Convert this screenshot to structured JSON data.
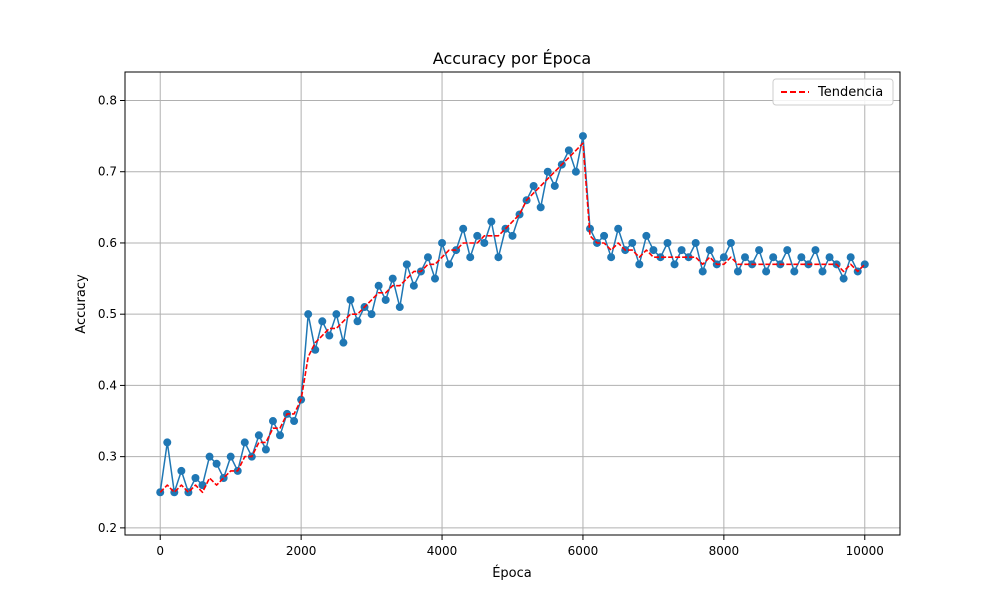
{
  "chart_data": {
    "type": "line",
    "title": "Accuracy por Época",
    "xlabel": "Época",
    "ylabel": "Accuracy",
    "xlim": [
      -500,
      10500
    ],
    "ylim": [
      0.19,
      0.84
    ],
    "x_ticks": [
      0,
      2000,
      4000,
      6000,
      8000,
      10000
    ],
    "y_ticks": [
      0.2,
      0.3,
      0.4,
      0.5,
      0.6,
      0.7,
      0.8
    ],
    "y_tick_decimals": 1,
    "grid": true,
    "legend_position": "top-right",
    "colors": {
      "accuracy": "#1f77b4",
      "trend": "#ff0000",
      "grid": "#b0b0b0"
    },
    "series": [
      {
        "key": "accuracy",
        "style": "line-marker",
        "x": [
          0,
          100,
          200,
          300,
          400,
          500,
          600,
          700,
          800,
          900,
          1000,
          1100,
          1200,
          1300,
          1400,
          1500,
          1600,
          1700,
          1800,
          1900,
          2000,
          2100,
          2200,
          2300,
          2400,
          2500,
          2600,
          2700,
          2800,
          2900,
          3000,
          3100,
          3200,
          3300,
          3400,
          3500,
          3600,
          3700,
          3800,
          3900,
          4000,
          4100,
          4200,
          4300,
          4400,
          4500,
          4600,
          4700,
          4800,
          4900,
          5000,
          5100,
          5200,
          5300,
          5400,
          5500,
          5600,
          5700,
          5800,
          5900,
          6000,
          6100,
          6200,
          6300,
          6400,
          6500,
          6600,
          6700,
          6800,
          6900,
          7000,
          7100,
          7200,
          7300,
          7400,
          7500,
          7600,
          7700,
          7800,
          7900,
          8000,
          8100,
          8200,
          8300,
          8400,
          8500,
          8600,
          8700,
          8800,
          8900,
          9000,
          9100,
          9200,
          9300,
          9400,
          9500,
          9600,
          9700,
          9800,
          9900,
          10000
        ],
        "y": [
          0.25,
          0.32,
          0.25,
          0.28,
          0.25,
          0.27,
          0.26,
          0.3,
          0.29,
          0.27,
          0.3,
          0.28,
          0.32,
          0.3,
          0.33,
          0.31,
          0.35,
          0.33,
          0.36,
          0.35,
          0.38,
          0.5,
          0.45,
          0.49,
          0.47,
          0.5,
          0.46,
          0.52,
          0.49,
          0.51,
          0.5,
          0.54,
          0.52,
          0.55,
          0.51,
          0.57,
          0.54,
          0.56,
          0.58,
          0.55,
          0.6,
          0.57,
          0.59,
          0.62,
          0.58,
          0.61,
          0.6,
          0.63,
          0.58,
          0.62,
          0.61,
          0.64,
          0.66,
          0.68,
          0.65,
          0.7,
          0.68,
          0.71,
          0.73,
          0.7,
          0.75,
          0.62,
          0.6,
          0.61,
          0.58,
          0.62,
          0.59,
          0.6,
          0.57,
          0.61,
          0.59,
          0.58,
          0.6,
          0.57,
          0.59,
          0.58,
          0.6,
          0.56,
          0.59,
          0.57,
          0.58,
          0.6,
          0.56,
          0.58,
          0.57,
          0.59,
          0.56,
          0.58,
          0.57,
          0.59,
          0.56,
          0.58,
          0.57,
          0.59,
          0.56,
          0.58,
          0.57,
          0.55,
          0.58,
          0.56,
          0.57
        ]
      },
      {
        "key": "trend",
        "name": "Tendencia",
        "style": "dashed",
        "x": [
          0,
          100,
          200,
          300,
          400,
          500,
          600,
          700,
          800,
          900,
          1000,
          1100,
          1200,
          1300,
          1400,
          1500,
          1600,
          1700,
          1800,
          1900,
          2000,
          2100,
          2200,
          2300,
          2400,
          2500,
          2600,
          2700,
          2800,
          2900,
          3000,
          3100,
          3200,
          3300,
          3400,
          3500,
          3600,
          3700,
          3800,
          3900,
          4000,
          4100,
          4200,
          4300,
          4400,
          4500,
          4600,
          4700,
          4800,
          4900,
          5000,
          5100,
          5200,
          5300,
          5400,
          5500,
          5600,
          5700,
          5800,
          5900,
          6000,
          6100,
          6200,
          6300,
          6400,
          6500,
          6600,
          6700,
          6800,
          6900,
          7000,
          7100,
          7200,
          7300,
          7400,
          7500,
          7600,
          7700,
          7800,
          7900,
          8000,
          8100,
          8200,
          8300,
          8400,
          8500,
          8600,
          8700,
          8800,
          8900,
          9000,
          9100,
          9200,
          9300,
          9400,
          9500,
          9600,
          9700,
          9800,
          9900,
          10000
        ],
        "y": [
          0.25,
          0.26,
          0.25,
          0.26,
          0.25,
          0.26,
          0.25,
          0.27,
          0.26,
          0.27,
          0.28,
          0.28,
          0.3,
          0.3,
          0.32,
          0.32,
          0.34,
          0.34,
          0.36,
          0.36,
          0.38,
          0.44,
          0.46,
          0.47,
          0.48,
          0.48,
          0.49,
          0.5,
          0.5,
          0.51,
          0.52,
          0.53,
          0.53,
          0.54,
          0.54,
          0.55,
          0.56,
          0.56,
          0.57,
          0.57,
          0.58,
          0.59,
          0.59,
          0.6,
          0.6,
          0.6,
          0.61,
          0.61,
          0.61,
          0.62,
          0.63,
          0.64,
          0.66,
          0.67,
          0.68,
          0.69,
          0.7,
          0.71,
          0.72,
          0.73,
          0.74,
          0.61,
          0.6,
          0.6,
          0.59,
          0.6,
          0.59,
          0.59,
          0.58,
          0.59,
          0.58,
          0.58,
          0.58,
          0.58,
          0.58,
          0.58,
          0.58,
          0.57,
          0.58,
          0.57,
          0.57,
          0.58,
          0.57,
          0.57,
          0.57,
          0.57,
          0.57,
          0.57,
          0.57,
          0.57,
          0.57,
          0.57,
          0.57,
          0.57,
          0.57,
          0.57,
          0.57,
          0.56,
          0.57,
          0.56,
          0.57
        ]
      }
    ]
  }
}
